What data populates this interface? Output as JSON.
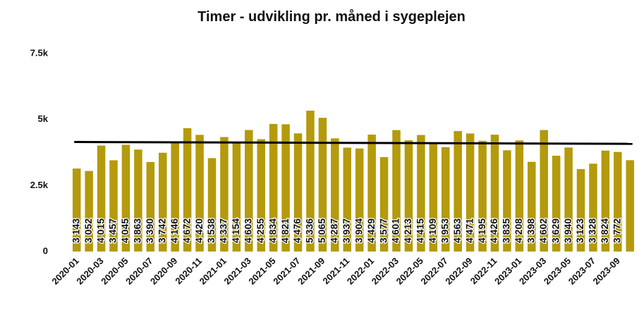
{
  "chart_data": {
    "type": "bar",
    "title": "Timer - udvikling pr. måned i sygeplejen",
    "categories": [
      "2020-01",
      null,
      "2020-03",
      null,
      "2020-05",
      null,
      "2020-07",
      null,
      "2020-09",
      null,
      "2020-11",
      null,
      "2021-01",
      null,
      "2021-03",
      null,
      "2021-05",
      null,
      "2021-07",
      null,
      "2021-09",
      null,
      "2021-11",
      null,
      "2022-01",
      null,
      "2022-03",
      null,
      "2022-05",
      null,
      "2022-07",
      null,
      "2022-09",
      null,
      "2022-11",
      null,
      "2023-01",
      null,
      "2023-03",
      null,
      "2023-05",
      null,
      "2023-07",
      null,
      "2023-09",
      null
    ],
    "values": [
      3143,
      3052,
      4015,
      3457,
      4045,
      3863,
      3390,
      3742,
      4146,
      4672,
      4420,
      3538,
      4337,
      4154,
      4603,
      4255,
      4834,
      4821,
      4476,
      5336,
      5065,
      4287,
      3937,
      3904,
      4429,
      3577,
      4601,
      4213,
      4415,
      4109,
      3953,
      4563,
      4471,
      4195,
      4426,
      3835,
      4208,
      3398,
      4602,
      3629,
      3940,
      3123,
      3328,
      3824,
      3772,
      3460
    ],
    "value_labels": [
      "3 143",
      "3 052",
      "4 015",
      "3 457",
      "4 045",
      "3 863",
      "3 390",
      "3 742",
      "4 146",
      "4 672",
      "4 420",
      "3 538",
      "4 337",
      "4 154",
      "4 603",
      "4 255",
      "4 834",
      "4 821",
      "4 476",
      "5 336",
      "5 065",
      "4 287",
      "3 937",
      "3 904",
      "4 429",
      "3 577",
      "4 601",
      "4 213",
      "4 415",
      "4 109",
      "3 953",
      "4 563",
      "4 471",
      "4 195",
      "4 426",
      "3 835",
      "4 208",
      "3 398",
      "4 602",
      "3 629",
      "3 940",
      "3 123",
      "3 328",
      "3 824",
      "3 772",
      null
    ],
    "color": "#b49a0c",
    "trend_line": {
      "start": 4150,
      "end": 4080,
      "color": "#000000"
    },
    "ylim": [
      0,
      7500
    ],
    "yticks": [
      0,
      {
        "value": 2500,
        "label": "2.5k"
      },
      {
        "value": 5000,
        "label": "5k"
      },
      {
        "value": 7500,
        "label": "7.5k"
      }
    ],
    "grid": false
  }
}
